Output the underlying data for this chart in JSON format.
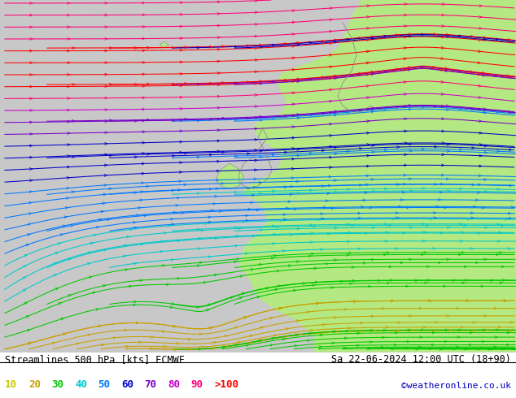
{
  "title_left": "Streamlines 500 hPa [kts] ECMWF",
  "title_right": "Sa 22-06-2024 12:00 UTC (18+90)",
  "credit": "©weatheronline.co.uk",
  "legend_values": [
    "10",
    "20",
    "30",
    "40",
    "50",
    "60",
    "70",
    "80",
    "90",
    ">100"
  ],
  "legend_colors": [
    "#c8c800",
    "#c8a000",
    "#00c800",
    "#00c8c8",
    "#0078ff",
    "#0000c8",
    "#7800c8",
    "#c800c8",
    "#ff0078",
    "#ff0000"
  ],
  "bg_color": "#c8c8c8",
  "land_color": "#b4e882",
  "fig_width": 6.34,
  "fig_height": 4.9,
  "dpi": 100,
  "speed_thresholds": [
    20,
    30,
    40,
    50,
    60,
    70,
    80,
    90,
    100
  ],
  "speed_colors": [
    "#c8c800",
    "#c8a000",
    "#00c800",
    "#00c8c8",
    "#0078ff",
    "#0000c8",
    "#7800c8",
    "#c800c8",
    "#ff0078",
    "#ff0000"
  ]
}
